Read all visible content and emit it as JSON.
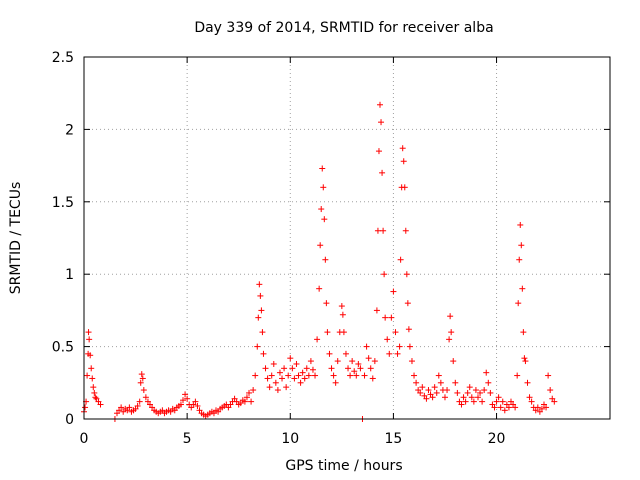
{
  "chart_data": {
    "type": "scatter",
    "title": "Day 339 of 2014, SRMTID for receiver alba",
    "xlabel": "GPS time / hours",
    "ylabel": "SRMTID / TECUs",
    "xlim": [
      0,
      25.5
    ],
    "ylim": [
      0,
      2.5
    ],
    "xticks": [
      0,
      5,
      10,
      15,
      20
    ],
    "xtick_labels": [
      "0",
      "5",
      "10",
      "15",
      "20"
    ],
    "yticks": [
      0,
      0.5,
      1,
      1.5,
      2,
      2.5
    ],
    "ytick_labels": [
      "0",
      "0.5",
      "1",
      "1.5",
      "2",
      "2.5"
    ],
    "grid": true,
    "marker": "+",
    "series": [
      {
        "name": "SRMTID",
        "color": "#ff0000",
        "points": [
          [
            0.0,
            0.05
          ],
          [
            0.05,
            0.08
          ],
          [
            0.1,
            0.12
          ],
          [
            0.15,
            0.3
          ],
          [
            0.2,
            0.45
          ],
          [
            0.22,
            0.6
          ],
          [
            0.25,
            0.55
          ],
          [
            0.3,
            0.44
          ],
          [
            0.35,
            0.35
          ],
          [
            0.4,
            0.28
          ],
          [
            0.45,
            0.22
          ],
          [
            0.5,
            0.18
          ],
          [
            0.55,
            0.15
          ],
          [
            0.6,
            0.14
          ],
          [
            0.7,
            0.12
          ],
          [
            0.8,
            0.1
          ],
          [
            1.5,
            0.0
          ],
          [
            1.6,
            0.04
          ],
          [
            1.7,
            0.06
          ],
          [
            1.8,
            0.08
          ],
          [
            1.9,
            0.05
          ],
          [
            2.0,
            0.07
          ],
          [
            2.1,
            0.06
          ],
          [
            2.2,
            0.08
          ],
          [
            2.3,
            0.05
          ],
          [
            2.4,
            0.06
          ],
          [
            2.5,
            0.07
          ],
          [
            2.6,
            0.09
          ],
          [
            2.7,
            0.12
          ],
          [
            2.75,
            0.25
          ],
          [
            2.8,
            0.31
          ],
          [
            2.85,
            0.28
          ],
          [
            2.9,
            0.2
          ],
          [
            3.0,
            0.15
          ],
          [
            3.1,
            0.12
          ],
          [
            3.2,
            0.1
          ],
          [
            3.3,
            0.08
          ],
          [
            3.4,
            0.06
          ],
          [
            3.5,
            0.05
          ],
          [
            3.6,
            0.04
          ],
          [
            3.7,
            0.05
          ],
          [
            3.8,
            0.06
          ],
          [
            3.9,
            0.04
          ],
          [
            4.0,
            0.05
          ],
          [
            4.1,
            0.06
          ],
          [
            4.2,
            0.05
          ],
          [
            4.3,
            0.07
          ],
          [
            4.4,
            0.06
          ],
          [
            4.5,
            0.08
          ],
          [
            4.6,
            0.09
          ],
          [
            4.7,
            0.1
          ],
          [
            4.8,
            0.13
          ],
          [
            4.9,
            0.17
          ],
          [
            5.0,
            0.14
          ],
          [
            5.1,
            0.1
          ],
          [
            5.2,
            0.08
          ],
          [
            5.3,
            0.1
          ],
          [
            5.4,
            0.12
          ],
          [
            5.5,
            0.09
          ],
          [
            5.6,
            0.06
          ],
          [
            5.7,
            0.04
          ],
          [
            5.8,
            0.03
          ],
          [
            5.9,
            0.02
          ],
          [
            6.0,
            0.03
          ],
          [
            6.1,
            0.04
          ],
          [
            6.2,
            0.05
          ],
          [
            6.3,
            0.04
          ],
          [
            6.4,
            0.06
          ],
          [
            6.5,
            0.05
          ],
          [
            6.6,
            0.07
          ],
          [
            6.7,
            0.08
          ],
          [
            6.8,
            0.09
          ],
          [
            6.9,
            0.1
          ],
          [
            7.0,
            0.08
          ],
          [
            7.1,
            0.1
          ],
          [
            7.2,
            0.12
          ],
          [
            7.3,
            0.14
          ],
          [
            7.4,
            0.12
          ],
          [
            7.5,
            0.1
          ],
          [
            7.6,
            0.11
          ],
          [
            7.7,
            0.13
          ],
          [
            7.8,
            0.12
          ],
          [
            7.9,
            0.15
          ],
          [
            8.0,
            0.18
          ],
          [
            8.1,
            0.12
          ],
          [
            8.2,
            0.2
          ],
          [
            8.3,
            0.3
          ],
          [
            8.4,
            0.5
          ],
          [
            8.45,
            0.7
          ],
          [
            8.5,
            0.93
          ],
          [
            8.55,
            0.85
          ],
          [
            8.6,
            0.75
          ],
          [
            8.65,
            0.6
          ],
          [
            8.7,
            0.45
          ],
          [
            8.8,
            0.35
          ],
          [
            8.9,
            0.28
          ],
          [
            9.0,
            0.22
          ],
          [
            9.1,
            0.3
          ],
          [
            9.2,
            0.38
          ],
          [
            9.3,
            0.25
          ],
          [
            9.4,
            0.2
          ],
          [
            9.5,
            0.32
          ],
          [
            9.6,
            0.28
          ],
          [
            9.7,
            0.35
          ],
          [
            9.8,
            0.22
          ],
          [
            9.9,
            0.3
          ],
          [
            10.0,
            0.42
          ],
          [
            10.1,
            0.35
          ],
          [
            10.2,
            0.28
          ],
          [
            10.3,
            0.38
          ],
          [
            10.4,
            0.3
          ],
          [
            10.5,
            0.25
          ],
          [
            10.6,
            0.32
          ],
          [
            10.7,
            0.28
          ],
          [
            10.8,
            0.35
          ],
          [
            10.9,
            0.3
          ],
          [
            11.0,
            0.4
          ],
          [
            11.1,
            0.34
          ],
          [
            11.2,
            0.3
          ],
          [
            11.3,
            0.55
          ],
          [
            11.4,
            0.9
          ],
          [
            11.45,
            1.2
          ],
          [
            11.5,
            1.45
          ],
          [
            11.55,
            1.73
          ],
          [
            11.6,
            1.6
          ],
          [
            11.65,
            1.38
          ],
          [
            11.7,
            1.1
          ],
          [
            11.75,
            0.8
          ],
          [
            11.8,
            0.6
          ],
          [
            11.9,
            0.45
          ],
          [
            12.0,
            0.35
          ],
          [
            12.1,
            0.3
          ],
          [
            12.2,
            0.25
          ],
          [
            12.3,
            0.4
          ],
          [
            12.4,
            0.6
          ],
          [
            12.5,
            0.78
          ],
          [
            12.55,
            0.72
          ],
          [
            12.6,
            0.6
          ],
          [
            12.7,
            0.45
          ],
          [
            12.8,
            0.35
          ],
          [
            12.9,
            0.3
          ],
          [
            13.0,
            0.4
          ],
          [
            13.1,
            0.33
          ],
          [
            13.2,
            0.3
          ],
          [
            13.3,
            0.38
          ],
          [
            13.4,
            0.35
          ],
          [
            13.5,
            0.0
          ],
          [
            13.6,
            0.3
          ],
          [
            13.7,
            0.5
          ],
          [
            13.8,
            0.42
          ],
          [
            13.9,
            0.35
          ],
          [
            14.0,
            0.28
          ],
          [
            14.1,
            0.4
          ],
          [
            14.2,
            0.75
          ],
          [
            14.25,
            1.3
          ],
          [
            14.3,
            1.85
          ],
          [
            14.35,
            2.17
          ],
          [
            14.4,
            2.05
          ],
          [
            14.45,
            1.7
          ],
          [
            14.5,
            1.3
          ],
          [
            14.55,
            1.0
          ],
          [
            14.6,
            0.7
          ],
          [
            14.7,
            0.55
          ],
          [
            14.8,
            0.45
          ],
          [
            14.9,
            0.7
          ],
          [
            15.0,
            0.88
          ],
          [
            15.1,
            0.6
          ],
          [
            15.2,
            0.45
          ],
          [
            15.3,
            0.5
          ],
          [
            15.35,
            1.1
          ],
          [
            15.4,
            1.6
          ],
          [
            15.45,
            1.87
          ],
          [
            15.5,
            1.78
          ],
          [
            15.55,
            1.6
          ],
          [
            15.6,
            1.3
          ],
          [
            15.65,
            1.0
          ],
          [
            15.7,
            0.8
          ],
          [
            15.75,
            0.62
          ],
          [
            15.8,
            0.5
          ],
          [
            15.9,
            0.4
          ],
          [
            16.0,
            0.3
          ],
          [
            16.1,
            0.25
          ],
          [
            16.2,
            0.2
          ],
          [
            16.3,
            0.18
          ],
          [
            16.4,
            0.22
          ],
          [
            16.5,
            0.16
          ],
          [
            16.6,
            0.14
          ],
          [
            16.7,
            0.2
          ],
          [
            16.8,
            0.17
          ],
          [
            16.9,
            0.15
          ],
          [
            17.0,
            0.22
          ],
          [
            17.1,
            0.18
          ],
          [
            17.2,
            0.3
          ],
          [
            17.3,
            0.25
          ],
          [
            17.4,
            0.2
          ],
          [
            17.5,
            0.15
          ],
          [
            17.6,
            0.2
          ],
          [
            17.7,
            0.55
          ],
          [
            17.75,
            0.71
          ],
          [
            17.8,
            0.6
          ],
          [
            17.9,
            0.4
          ],
          [
            18.0,
            0.25
          ],
          [
            18.1,
            0.18
          ],
          [
            18.2,
            0.12
          ],
          [
            18.3,
            0.1
          ],
          [
            18.4,
            0.15
          ],
          [
            18.5,
            0.12
          ],
          [
            18.6,
            0.18
          ],
          [
            18.7,
            0.22
          ],
          [
            18.8,
            0.15
          ],
          [
            18.9,
            0.12
          ],
          [
            19.0,
            0.2
          ],
          [
            19.1,
            0.15
          ],
          [
            19.2,
            0.18
          ],
          [
            19.3,
            0.12
          ],
          [
            19.4,
            0.2
          ],
          [
            19.5,
            0.32
          ],
          [
            19.6,
            0.25
          ],
          [
            19.7,
            0.18
          ],
          [
            19.8,
            0.1
          ],
          [
            19.9,
            0.08
          ],
          [
            20.0,
            0.12
          ],
          [
            20.1,
            0.15
          ],
          [
            20.2,
            0.08
          ],
          [
            20.3,
            0.12
          ],
          [
            20.4,
            0.06
          ],
          [
            20.5,
            0.1
          ],
          [
            20.6,
            0.08
          ],
          [
            20.7,
            0.12
          ],
          [
            20.8,
            0.1
          ],
          [
            20.9,
            0.08
          ],
          [
            21.0,
            0.3
          ],
          [
            21.05,
            0.8
          ],
          [
            21.1,
            1.1
          ],
          [
            21.15,
            1.34
          ],
          [
            21.2,
            1.2
          ],
          [
            21.25,
            0.9
          ],
          [
            21.3,
            0.6
          ],
          [
            21.35,
            0.42
          ],
          [
            21.4,
            0.4
          ],
          [
            21.5,
            0.25
          ],
          [
            21.6,
            0.15
          ],
          [
            21.7,
            0.12
          ],
          [
            21.8,
            0.08
          ],
          [
            21.9,
            0.06
          ],
          [
            22.0,
            0.08
          ],
          [
            22.1,
            0.05
          ],
          [
            22.2,
            0.07
          ],
          [
            22.3,
            0.1
          ],
          [
            22.4,
            0.08
          ],
          [
            22.5,
            0.3
          ],
          [
            22.6,
            0.2
          ],
          [
            22.7,
            0.14
          ],
          [
            22.8,
            0.12
          ]
        ]
      }
    ]
  }
}
